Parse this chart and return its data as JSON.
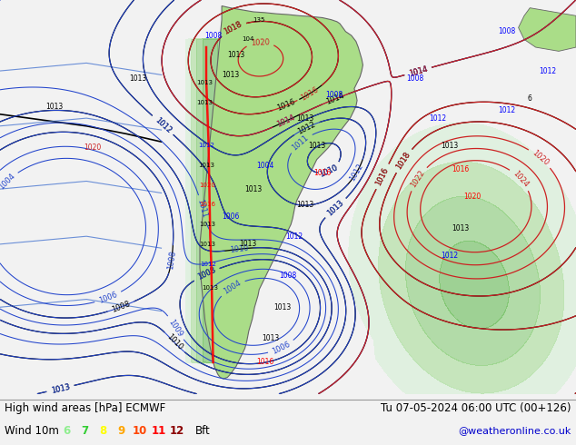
{
  "title_left": "High wind areas [hPa] ECMWF",
  "title_right": "Tu 07-05-2024 06:00 UTC (00+126)",
  "subtitle_left": "Wind 10m",
  "legend_values": [
    "6",
    "7",
    "8",
    "9",
    "10",
    "11",
    "12"
  ],
  "legend_colors": [
    "#90ee90",
    "#32cd32",
    "#ffff00",
    "#ffa500",
    "#ff4500",
    "#ff0000",
    "#8b0000"
  ],
  "legend_unit": "Bft",
  "watermark": "@weatheronline.co.uk",
  "watermark_color": "#0000cc",
  "bg_color": "#f2f2f2",
  "ocean_color": "#f2f2f2",
  "land_color": "#aadd88",
  "wind_colors": [
    "#ccffcc",
    "#99ee99",
    "#66dd66"
  ],
  "figsize": [
    6.34,
    4.9
  ],
  "dpi": 100
}
